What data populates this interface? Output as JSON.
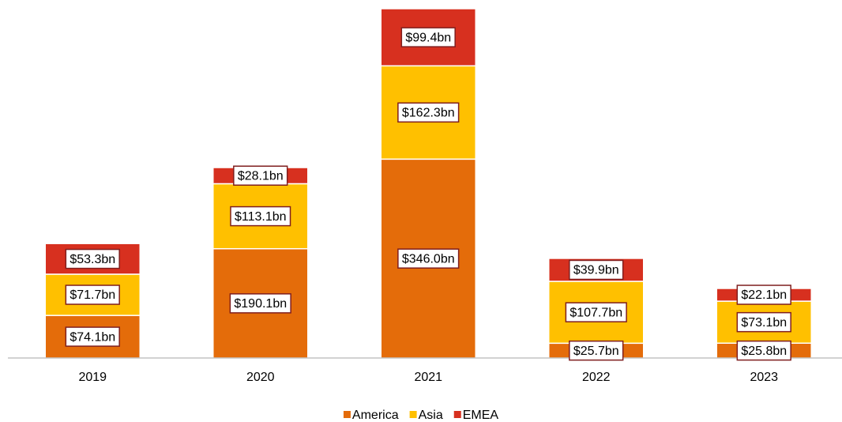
{
  "chart_data": {
    "type": "stacked_bar",
    "categories": [
      "2019",
      "2020",
      "2021",
      "2022",
      "2023"
    ],
    "series": [
      {
        "name": "America",
        "color": "#e46c0a",
        "values": [
          74.1,
          190.1,
          346.0,
          25.7,
          25.8
        ],
        "value_labels": [
          "$74.1bn",
          "$190.1bn",
          "$346.0bn",
          "$25.7bn",
          "$25.8bn"
        ]
      },
      {
        "name": "Asia",
        "color": "#ffc000",
        "values": [
          71.7,
          113.1,
          162.3,
          107.7,
          73.1
        ],
        "value_labels": [
          "$71.7bn",
          "$113.1bn",
          "$162.3bn",
          "$107.7bn",
          "$73.1bn"
        ]
      },
      {
        "name": "EMEA",
        "color": "#d7301f",
        "values": [
          53.3,
          28.1,
          99.4,
          39.9,
          22.1
        ],
        "value_labels": [
          "$53.3bn",
          "$28.1bn",
          "$99.4bn",
          "$39.9bn",
          "$22.1bn"
        ]
      }
    ],
    "legend": "bottom"
  }
}
